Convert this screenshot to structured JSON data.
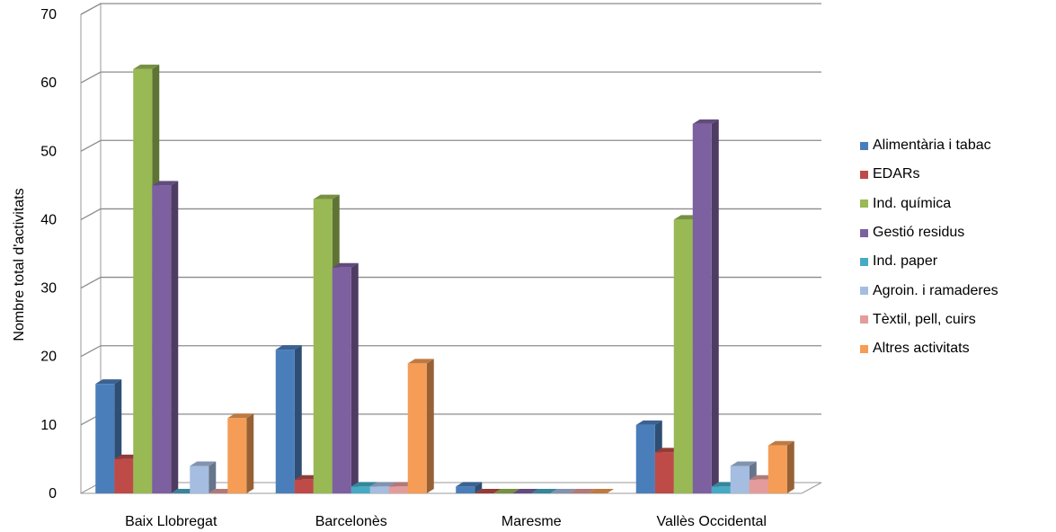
{
  "chart_data": {
    "type": "bar",
    "title": "",
    "xlabel": "",
    "ylabel": "Nombre total d'activitats",
    "ylim": [
      0,
      70
    ],
    "yticks": [
      0,
      10,
      20,
      30,
      40,
      50,
      60,
      70
    ],
    "grid": true,
    "legend_position": "right",
    "three_d": true,
    "categories": [
      "Baix Llobregat",
      "Barcelonès",
      "Maresme",
      "Vallès Occidental"
    ],
    "series": [
      {
        "name": "Alimentària i tabac",
        "color": "#4a7ebb",
        "values": [
          16,
          21,
          1,
          10
        ]
      },
      {
        "name": "EDARs",
        "color": "#be4b48",
        "values": [
          5,
          2,
          0,
          6
        ]
      },
      {
        "name": "Ind. química",
        "color": "#98b954",
        "values": [
          62,
          43,
          0,
          40
        ]
      },
      {
        "name": "Gestió residus",
        "color": "#7d60a0",
        "values": [
          45,
          33,
          0,
          54
        ]
      },
      {
        "name": "Ind. paper",
        "color": "#46aac5",
        "values": [
          0,
          1,
          0,
          1
        ]
      },
      {
        "name": "Agroin. i ramaderes",
        "color": "#a5bde0",
        "values": [
          4,
          1,
          0,
          4
        ]
      },
      {
        "name": "Tèxtil, pell, cuirs",
        "color": "#e39c9b",
        "values": [
          0,
          1,
          0,
          2
        ]
      },
      {
        "name": "Altres activitats",
        "color": "#f59d56",
        "values": [
          11,
          19,
          0,
          7
        ]
      }
    ]
  }
}
